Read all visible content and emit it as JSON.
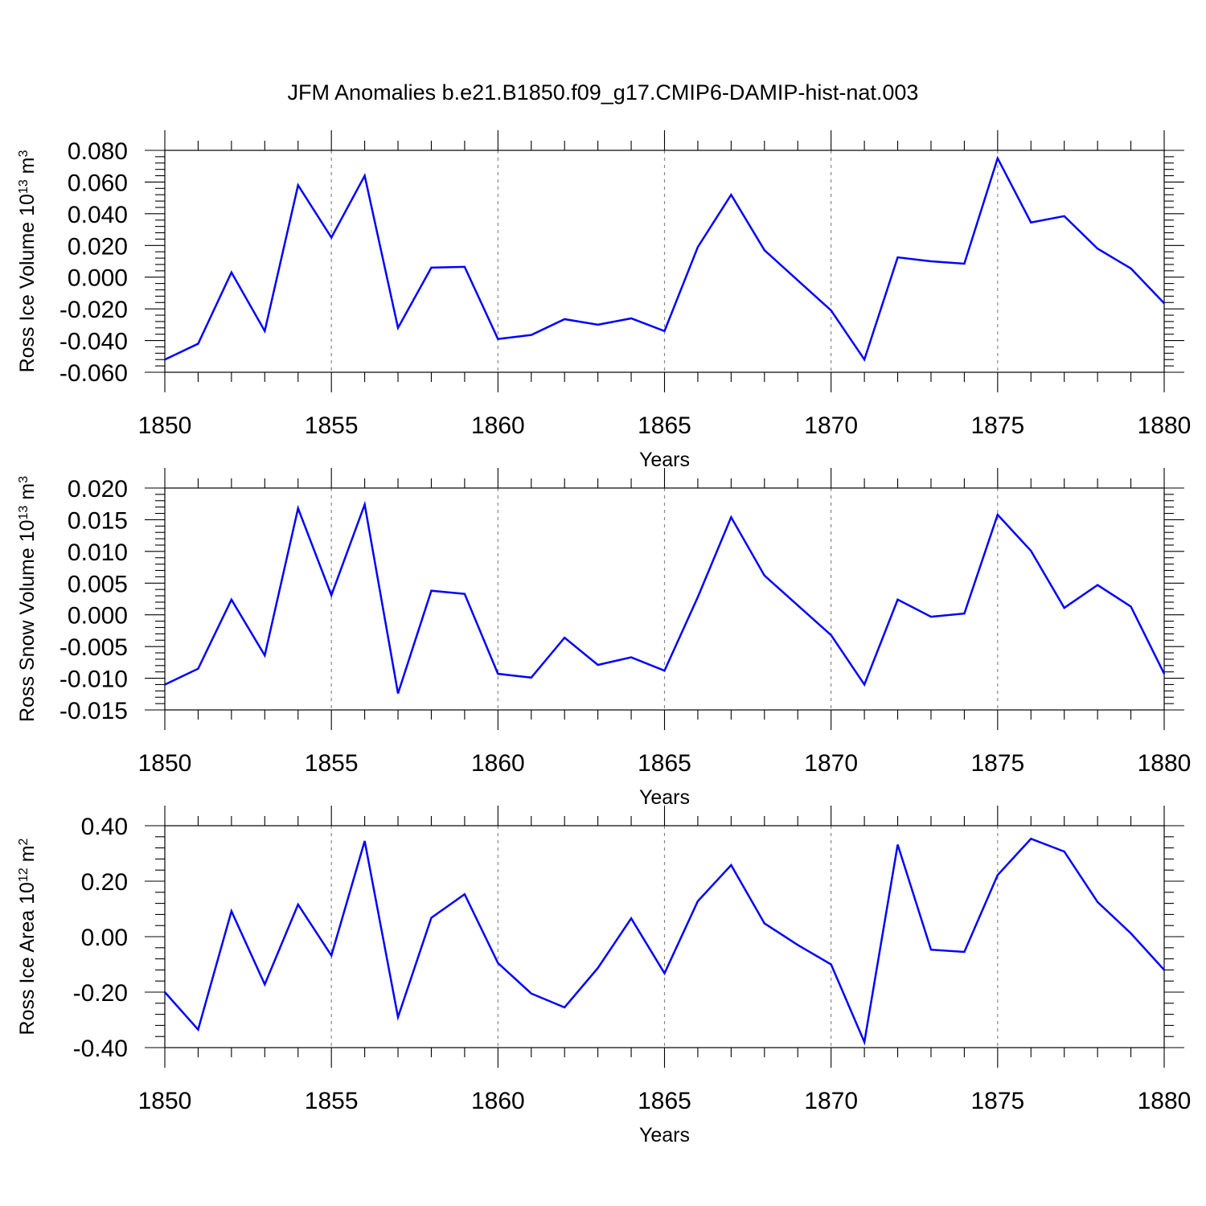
{
  "title": "JFM Anomalies b.e21.B1850.f09_g17.CMIP6-DAMIP-hist-nat.003",
  "colors": {
    "series": "#0000ff",
    "axes": "#000000",
    "grid": "#888888",
    "background": "#ffffff"
  },
  "chart_data": [
    {
      "type": "line",
      "ylabel_main": "Ross Ice Volume 10",
      "ylabel_exp": "13",
      "ylabel_unit": " m",
      "ylabel_unit_exp": "3",
      "xlabel": "Years",
      "xlim": [
        1850,
        1880
      ],
      "ylim": [
        -0.06,
        0.08
      ],
      "xticks": [
        "1850",
        "1855",
        "1860",
        "1865",
        "1870",
        "1875",
        "1880"
      ],
      "yticks": [
        "0.080",
        "0.060",
        "0.040",
        "0.020",
        "0.000",
        "-0.020",
        "-0.040",
        "-0.060"
      ],
      "ytick_values": [
        0.08,
        0.06,
        0.04,
        0.02,
        0.0,
        -0.02,
        -0.04,
        -0.06
      ],
      "grid": "vertical dashed at major x ticks",
      "series": [
        {
          "name": "Ross Ice Volume",
          "x": [
            1850,
            1851,
            1852,
            1853,
            1854,
            1855,
            1856,
            1857,
            1858,
            1859,
            1860,
            1861,
            1862,
            1863,
            1864,
            1865,
            1866,
            1867,
            1868,
            1869,
            1870,
            1871,
            1872,
            1873,
            1874,
            1875,
            1876,
            1877,
            1878,
            1879,
            1880
          ],
          "values": [
            -0.052,
            -0.042,
            0.003,
            -0.034,
            0.058,
            0.025,
            0.064,
            -0.032,
            0.006,
            0.0065,
            -0.039,
            -0.0365,
            -0.0265,
            -0.03,
            -0.026,
            -0.034,
            0.019,
            0.052,
            0.017,
            -0.002,
            -0.021,
            -0.052,
            0.0125,
            0.01,
            0.0085,
            0.075,
            0.0345,
            0.0385,
            0.018,
            0.0055,
            -0.0165
          ]
        }
      ]
    },
    {
      "type": "line",
      "ylabel_main": "Ross Snow Volume 10",
      "ylabel_exp": "13",
      "ylabel_unit": " m",
      "ylabel_unit_exp": "3",
      "xlabel": "Years",
      "xlim": [
        1850,
        1880
      ],
      "ylim": [
        -0.015,
        0.02
      ],
      "xticks": [
        "1850",
        "1855",
        "1860",
        "1865",
        "1870",
        "1875",
        "1880"
      ],
      "yticks": [
        "0.020",
        "0.015",
        "0.010",
        "0.005",
        "0.000",
        "-0.005",
        "-0.010",
        "-0.015"
      ],
      "ytick_values": [
        0.02,
        0.015,
        0.01,
        0.005,
        0.0,
        -0.005,
        -0.01,
        -0.015
      ],
      "grid": "vertical dashed at major x ticks",
      "series": [
        {
          "name": "Ross Snow Volume",
          "x": [
            1850,
            1851,
            1852,
            1853,
            1854,
            1855,
            1856,
            1857,
            1858,
            1859,
            1860,
            1861,
            1862,
            1863,
            1864,
            1865,
            1866,
            1867,
            1868,
            1869,
            1870,
            1871,
            1872,
            1873,
            1874,
            1875,
            1876,
            1877,
            1878,
            1879,
            1880
          ],
          "values": [
            -0.011,
            -0.0085,
            0.0024,
            -0.0064,
            0.0168,
            0.0031,
            0.0174,
            -0.0124,
            0.0038,
            0.0033,
            -0.0093,
            -0.0099,
            -0.0036,
            -0.0079,
            -0.0067,
            -0.0088,
            0.0028,
            0.0154,
            0.0062,
            0.0015,
            -0.0032,
            -0.011,
            0.0024,
            -0.0003,
            0.0002,
            0.0158,
            0.0101,
            0.0011,
            0.0047,
            0.0013,
            -0.0093
          ]
        }
      ]
    },
    {
      "type": "line",
      "ylabel_main": "Ross Ice Area 10",
      "ylabel_exp": "12",
      "ylabel_unit": " m",
      "ylabel_unit_exp": "2",
      "xlabel": "Years",
      "xlim": [
        1850,
        1880
      ],
      "ylim": [
        -0.4,
        0.4
      ],
      "xticks": [
        "1850",
        "1855",
        "1860",
        "1865",
        "1870",
        "1875",
        "1880"
      ],
      "yticks": [
        "0.40",
        "0.20",
        "0.00",
        "-0.20",
        "-0.40"
      ],
      "ytick_values": [
        0.4,
        0.2,
        0.0,
        -0.2,
        -0.4
      ],
      "grid": "vertical dashed at major x ticks",
      "series": [
        {
          "name": "Ross Ice Area",
          "x": [
            1850,
            1851,
            1852,
            1853,
            1854,
            1855,
            1856,
            1857,
            1858,
            1859,
            1860,
            1861,
            1862,
            1863,
            1864,
            1865,
            1866,
            1867,
            1868,
            1869,
            1870,
            1871,
            1872,
            1873,
            1874,
            1875,
            1876,
            1877,
            1878,
            1879,
            1880
          ],
          "values": [
            -0.2,
            -0.335,
            0.092,
            -0.172,
            0.116,
            -0.068,
            0.345,
            -0.29,
            0.068,
            0.153,
            -0.095,
            -0.205,
            -0.255,
            -0.113,
            0.066,
            -0.132,
            0.128,
            0.258,
            0.048,
            -0.03,
            -0.1,
            -0.38,
            0.332,
            -0.047,
            -0.055,
            0.222,
            0.353,
            0.307,
            0.125,
            0.012,
            -0.12
          ]
        }
      ]
    }
  ]
}
